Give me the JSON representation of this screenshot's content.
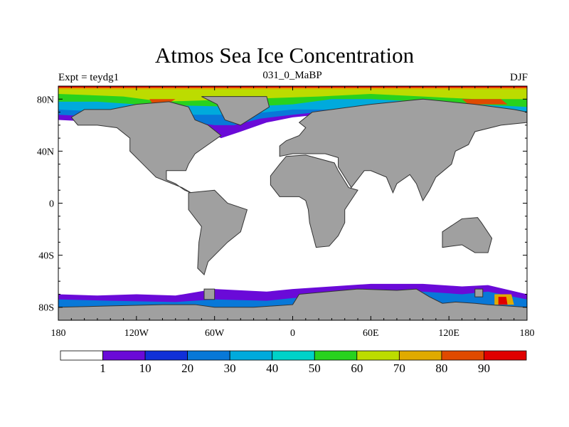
{
  "chart_data": {
    "type": "heatmap",
    "title": "Atmos Sea Ice Concentration",
    "left_string": "Expt = teydg1",
    "center_string": "031_0_MaBP",
    "right_string": "DJF",
    "projection": "cylindrical-equidistant",
    "xlim": [
      -180,
      180
    ],
    "ylim": [
      -90,
      90
    ],
    "x_ticks": [
      {
        "v": -180,
        "label": "180"
      },
      {
        "v": -120,
        "label": "120W"
      },
      {
        "v": -60,
        "label": "60W"
      },
      {
        "v": 0,
        "label": "0"
      },
      {
        "v": 60,
        "label": "60E"
      },
      {
        "v": 120,
        "label": "120E"
      },
      {
        "v": 180,
        "label": "180"
      }
    ],
    "y_ticks": [
      {
        "v": 80,
        "label": "80N"
      },
      {
        "v": 40,
        "label": "40N"
      },
      {
        "v": 0,
        "label": "0"
      },
      {
        "v": -40,
        "label": "40S"
      },
      {
        "v": -80,
        "label": "80S"
      }
    ],
    "land_color": "#a0a0a0",
    "colorbar": {
      "levels": [
        "1",
        "10",
        "20",
        "30",
        "40",
        "50",
        "60",
        "70",
        "80",
        "90"
      ],
      "colors": [
        "#ffffff",
        "#6a0ad8",
        "#1030d8",
        "#0878d8",
        "#00aadc",
        "#00d2c8",
        "#28d21e",
        "#bcdc00",
        "#e0aa00",
        "#e04a00",
        "#e00000"
      ]
    }
  }
}
